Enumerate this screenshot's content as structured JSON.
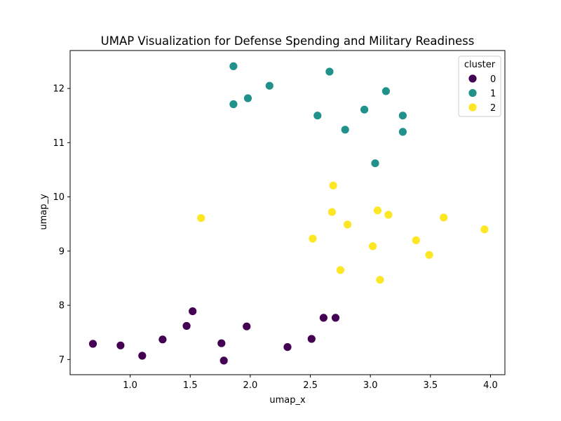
{
  "chart_data": {
    "type": "scatter",
    "title": "UMAP Visualization for Defense Spending and Military Readiness",
    "xlabel": "umap_x",
    "ylabel": "umap_y",
    "xlim": [
      0.5,
      4.12
    ],
    "ylim": [
      6.72,
      12.7
    ],
    "x_ticks": [
      "1.0",
      "1.5",
      "2.0",
      "2.5",
      "3.0",
      "3.5",
      "4.0"
    ],
    "y_ticks": [
      "7",
      "8",
      "9",
      "10",
      "11",
      "12"
    ],
    "x_tick_values": [
      1.0,
      1.5,
      2.0,
      2.5,
      3.0,
      3.5,
      4.0
    ],
    "y_tick_values": [
      7,
      8,
      9,
      10,
      11,
      12
    ],
    "grid": false,
    "legend": {
      "title": "cluster",
      "placement": "top-right"
    },
    "series": [
      {
        "name": "0",
        "color": "#440154",
        "points": [
          [
            0.69,
            7.29
          ],
          [
            0.92,
            7.26
          ],
          [
            1.1,
            7.07
          ],
          [
            1.27,
            7.37
          ],
          [
            1.47,
            7.62
          ],
          [
            1.52,
            7.89
          ],
          [
            1.76,
            7.3
          ],
          [
            1.78,
            6.98
          ],
          [
            1.97,
            7.61
          ],
          [
            2.31,
            7.23
          ],
          [
            2.51,
            7.38
          ],
          [
            2.61,
            7.77
          ],
          [
            2.71,
            7.77
          ]
        ]
      },
      {
        "name": "1",
        "color": "#21918c",
        "points": [
          [
            1.86,
            12.41
          ],
          [
            1.86,
            11.71
          ],
          [
            1.98,
            11.82
          ],
          [
            2.16,
            12.05
          ],
          [
            2.56,
            11.5
          ],
          [
            2.66,
            12.31
          ],
          [
            2.79,
            11.24
          ],
          [
            2.95,
            11.61
          ],
          [
            3.04,
            10.62
          ],
          [
            3.13,
            11.95
          ],
          [
            3.27,
            11.5
          ],
          [
            3.27,
            11.2
          ]
        ]
      },
      {
        "name": "2",
        "color": "#fde725",
        "points": [
          [
            1.59,
            9.61
          ],
          [
            2.52,
            9.23
          ],
          [
            2.68,
            9.72
          ],
          [
            2.69,
            10.21
          ],
          [
            2.75,
            8.65
          ],
          [
            2.81,
            9.49
          ],
          [
            3.02,
            9.09
          ],
          [
            3.06,
            9.75
          ],
          [
            3.08,
            8.47
          ],
          [
            3.15,
            9.67
          ],
          [
            3.38,
            9.2
          ],
          [
            3.49,
            8.93
          ],
          [
            3.61,
            9.62
          ],
          [
            3.95,
            9.4
          ]
        ]
      }
    ]
  }
}
